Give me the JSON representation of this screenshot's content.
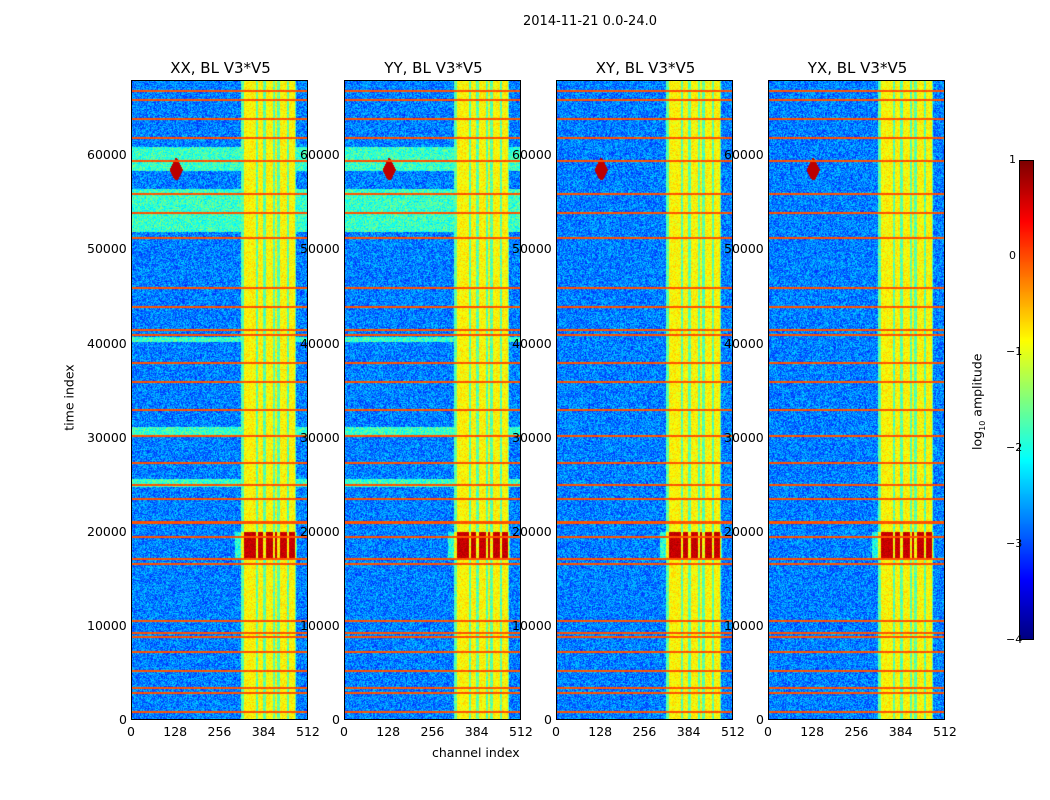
{
  "chart_data": {
    "type": "heatmap",
    "title": "2014-11-21 0.0-24.0",
    "xlabel": "channel index",
    "ylabel": "time index",
    "xlim": [
      0,
      512
    ],
    "ylim": [
      0,
      68000
    ],
    "xticks": [
      "0",
      "128",
      "256",
      "384",
      "512"
    ],
    "yticks": [
      "0",
      "10000",
      "20000",
      "30000",
      "40000",
      "50000",
      "60000"
    ],
    "panels": [
      {
        "title": "XX, BL V3*V5",
        "cross": false
      },
      {
        "title": "YY, BL V3*V5",
        "cross": false
      },
      {
        "title": "XY, BL V3*V5",
        "cross": true
      },
      {
        "title": "YX, BL V3*V5",
        "cross": true
      }
    ],
    "rfi_rows_time": [
      800,
      2800,
      3400,
      5200,
      7200,
      8800,
      9200,
      10500,
      16600,
      17100,
      19500,
      21000,
      23500,
      25000,
      27300,
      30200,
      33000,
      36000,
      38000,
      41000,
      41500,
      44000,
      46000,
      51300,
      54000,
      56000,
      59500,
      62000,
      64000,
      66000,
      67000
    ],
    "bright_channel_bands": [
      [
        326,
        362
      ],
      [
        368,
        382
      ],
      [
        392,
        412
      ],
      [
        418,
        424
      ],
      [
        432,
        452
      ],
      [
        458,
        474
      ]
    ],
    "hotspot": {
      "time": [
        17000,
        20000
      ],
      "channels": [
        300,
        480
      ],
      "log_amp": 0.5
    },
    "colorbar": {
      "label": "log10 amplitude",
      "label_main": "log",
      "label_sub": "10",
      "label_rest": " amplitude",
      "ticks": [
        "1",
        "0",
        "−1",
        "−2",
        "−3",
        "−4"
      ],
      "range": [
        -4,
        1
      ],
      "colormap": "jet"
    }
  }
}
